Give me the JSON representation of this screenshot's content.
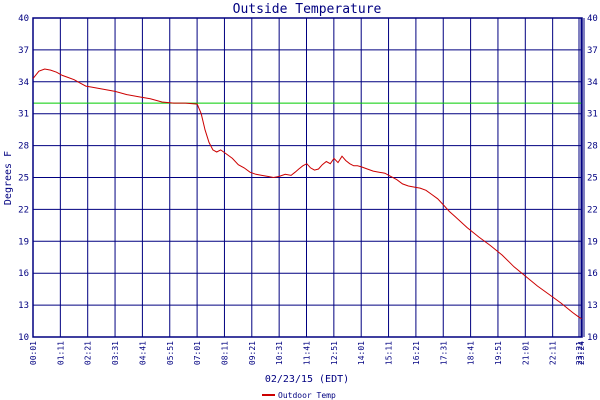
{
  "chart_data": {
    "type": "line",
    "title": "Outside Temperature",
    "xlabel": "02/23/15 (EDT)",
    "ylabel": "Degrees F",
    "ylim": [
      10,
      40
    ],
    "yticks": [
      10,
      13,
      16,
      19,
      22,
      25,
      28,
      31,
      34,
      37,
      40
    ],
    "xticks": [
      "00:01",
      "01:11",
      "02:21",
      "03:31",
      "04:41",
      "05:51",
      "07:01",
      "08:11",
      "09:21",
      "10:31",
      "11:41",
      "12:51",
      "14:01",
      "15:11",
      "16:21",
      "17:31",
      "18:41",
      "19:51",
      "21:01",
      "22:11",
      "23:21",
      "23:24"
    ],
    "grid": true,
    "reference_line": {
      "value": 32,
      "color": "#00cc00"
    },
    "colors": {
      "grid": "#000080",
      "series": "#cc0000",
      "axis": "#000080"
    },
    "legend_position": "bottom-center",
    "series": [
      {
        "name": "Outdoor Temp",
        "color": "#cc0000",
        "x_hours": [
          0.0,
          0.25,
          0.5,
          0.75,
          1.0,
          1.25,
          1.5,
          1.75,
          2.0,
          2.25,
          2.5,
          3.0,
          3.5,
          4.0,
          4.5,
          5.0,
          5.5,
          6.0,
          6.5,
          7.0,
          7.17,
          7.33,
          7.5,
          7.67,
          7.83,
          8.0,
          8.25,
          8.5,
          8.75,
          9.0,
          9.25,
          9.5,
          9.75,
          10.0,
          10.25,
          10.5,
          10.75,
          11.0,
          11.17,
          11.33,
          11.5,
          11.67,
          11.83,
          12.0,
          12.17,
          12.33,
          12.5,
          12.67,
          12.83,
          13.0,
          13.17,
          13.33,
          13.5,
          13.67,
          13.83,
          14.0,
          14.25,
          14.5,
          14.75,
          15.0,
          15.25,
          15.5,
          15.75,
          16.0,
          16.25,
          16.5,
          16.75,
          17.0,
          17.25,
          17.5,
          17.75,
          18.0,
          18.5,
          19.0,
          19.5,
          20.0,
          20.5,
          21.0,
          21.5,
          22.0,
          22.5,
          23.0,
          23.25,
          23.38
        ],
        "values": [
          34.3,
          35.0,
          35.2,
          35.1,
          34.9,
          34.6,
          34.4,
          34.2,
          33.9,
          33.6,
          33.5,
          33.3,
          33.1,
          32.8,
          32.6,
          32.4,
          32.1,
          32.0,
          32.0,
          31.9,
          31.0,
          29.5,
          28.3,
          27.6,
          27.4,
          27.6,
          27.2,
          26.8,
          26.2,
          25.9,
          25.5,
          25.3,
          25.2,
          25.1,
          25.0,
          25.1,
          25.3,
          25.2,
          25.5,
          25.8,
          26.1,
          26.3,
          25.9,
          25.7,
          25.8,
          26.2,
          26.5,
          26.3,
          26.8,
          26.4,
          27.0,
          26.6,
          26.3,
          26.1,
          26.1,
          26.0,
          25.8,
          25.6,
          25.5,
          25.4,
          25.1,
          24.8,
          24.4,
          24.2,
          24.1,
          24.0,
          23.8,
          23.4,
          23.0,
          22.4,
          21.8,
          21.3,
          20.3,
          19.4,
          18.6,
          17.7,
          16.6,
          15.7,
          14.8,
          14.0,
          13.2,
          12.3,
          11.9,
          11.7
        ]
      }
    ]
  }
}
